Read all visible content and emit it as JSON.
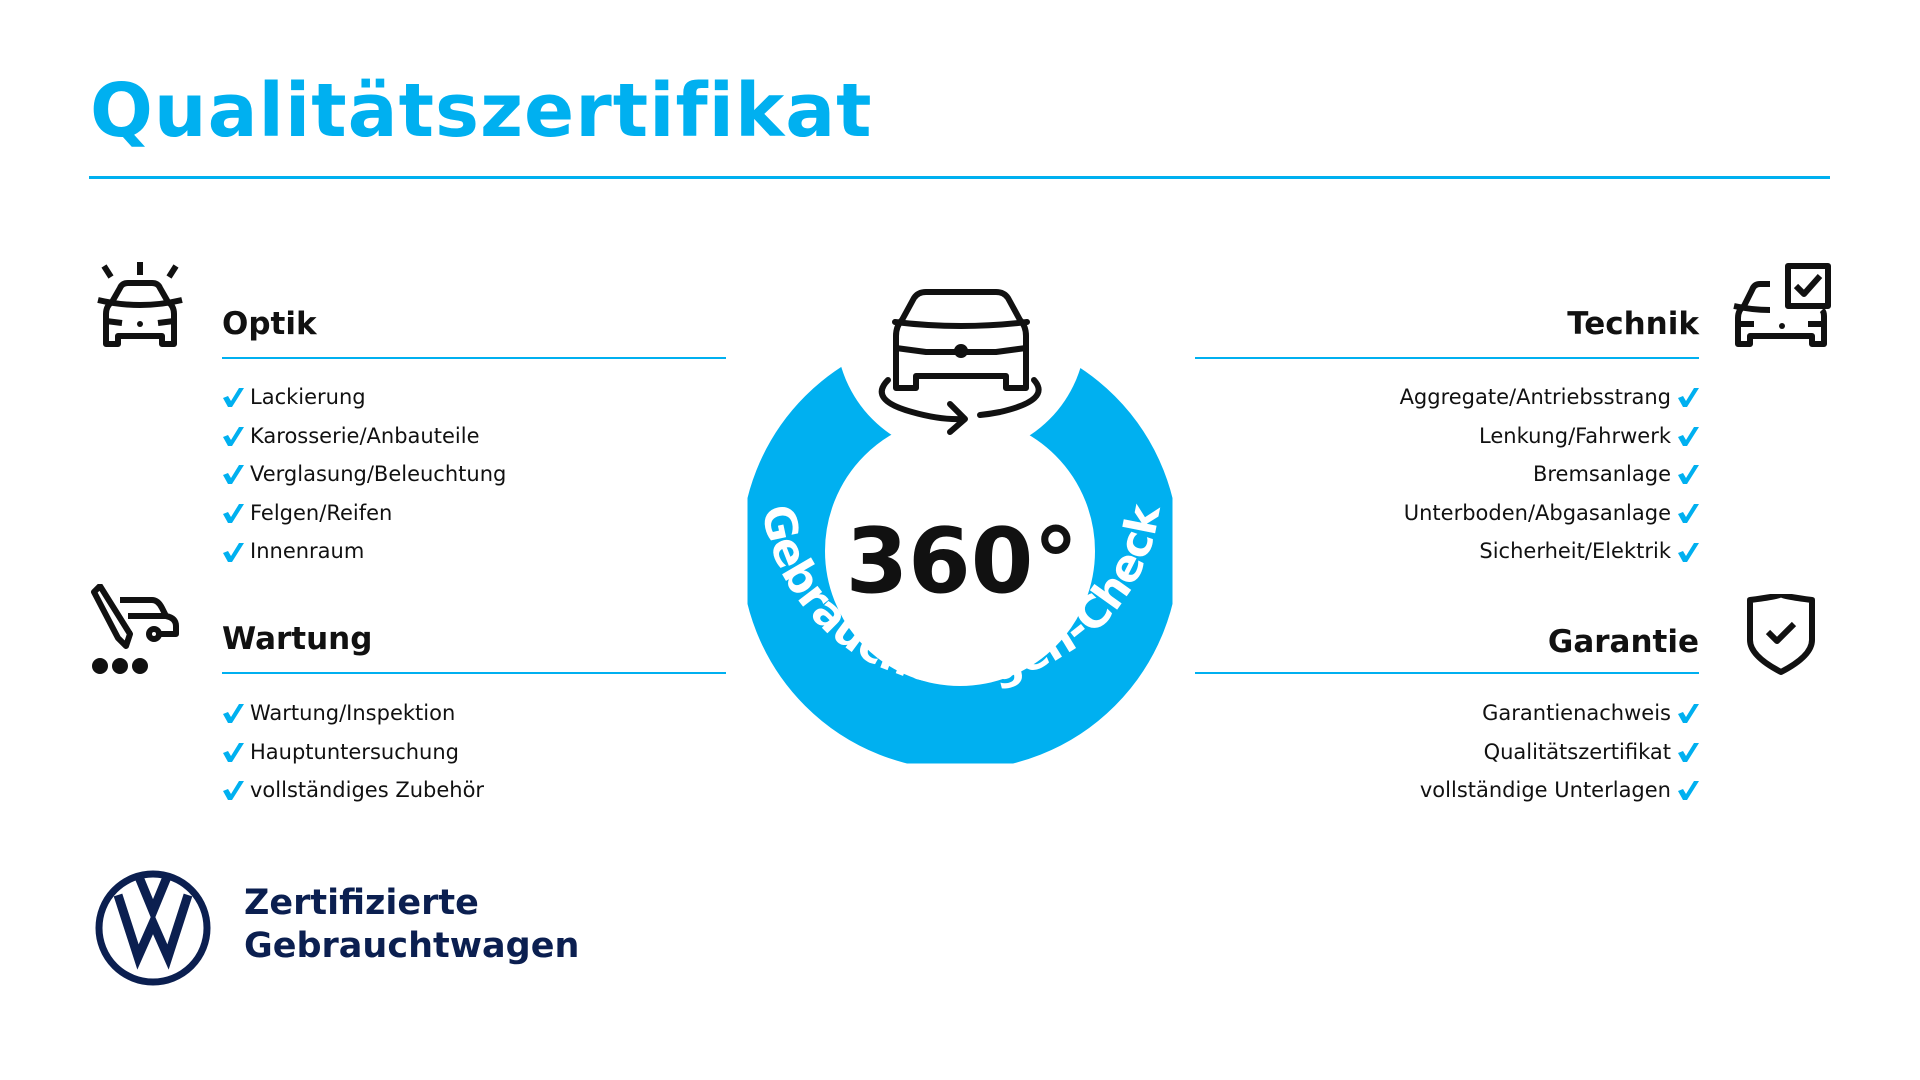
{
  "title": "Qualitätszertifikat",
  "colors": {
    "accent": "#00b0f0",
    "brand": "#0b1f50",
    "text": "#111111"
  },
  "center": {
    "degrees": "360°",
    "arc_text": "Gebrauchtwagen-Check",
    "icon": "car-rotate-360-icon"
  },
  "sections": {
    "optik": {
      "title": "Optik",
      "icon": "car-lights-icon",
      "items": [
        "Lackierung",
        "Karosserie/Anbauteile",
        "Verglasung/Beleuchtung",
        "Felgen/Reifen",
        "Innenraum"
      ]
    },
    "wartung": {
      "title": "Wartung",
      "icon": "car-service-pen-icon",
      "items": [
        "Wartung/Inspektion",
        "Hauptuntersuchung",
        "vollständiges Zubehör"
      ]
    },
    "technik": {
      "title": "Technik",
      "icon": "car-checkbox-icon",
      "items": [
        "Aggregate/Antriebsstrang",
        "Lenkung/Fahrwerk",
        "Bremsanlage",
        "Unterboden/Abgasanlage",
        "Sicherheit/Elektrik"
      ]
    },
    "garantie": {
      "title": "Garantie",
      "icon": "shield-check-icon",
      "items": [
        "Garantienachweis",
        "Qualitätszertifikat",
        "vollständige Unterlagen"
      ]
    }
  },
  "brand": {
    "line1": "Zertifizierte",
    "line2": "Gebrauchtwagen",
    "logo": "VW"
  }
}
